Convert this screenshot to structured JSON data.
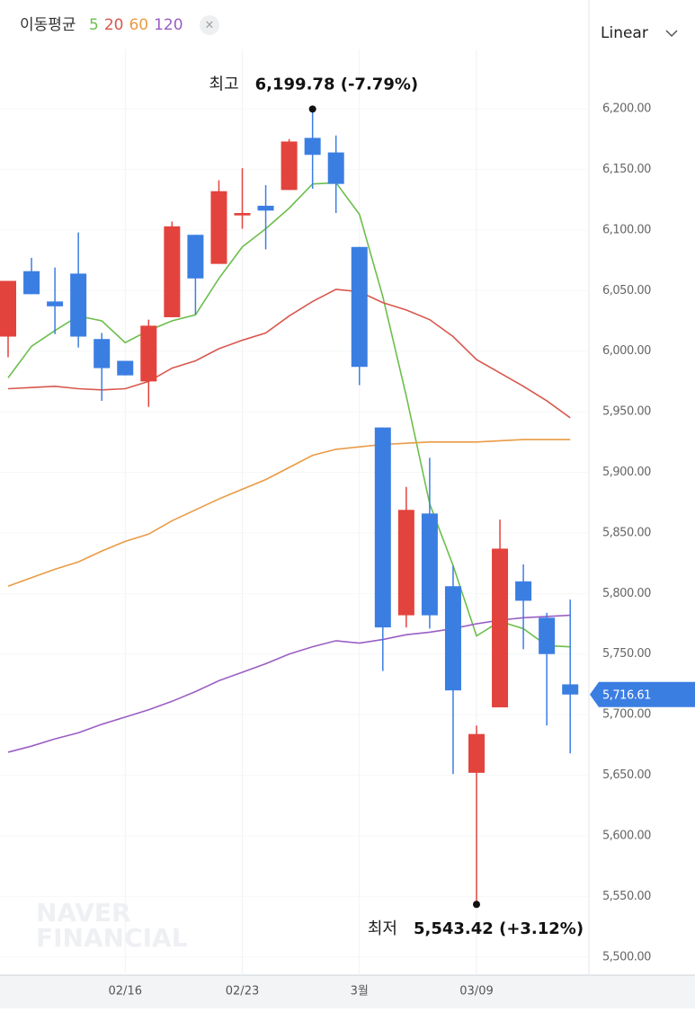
{
  "chart_data": {
    "type": "candlestick",
    "legend_title": "이동평균",
    "scale_label": "Linear",
    "categories": [
      null,
      null,
      null,
      null,
      null,
      "02/16",
      null,
      null,
      null,
      null,
      "02/23",
      null,
      null,
      null,
      null,
      "3월",
      null,
      null,
      null,
      null,
      "03/09",
      null,
      null,
      null,
      null
    ],
    "candles": {
      "up_color": "#e3433d",
      "down_color": "#3b7ee2",
      "open": [
        6012,
        6066,
        6041,
        6064,
        6010,
        5992,
        5975,
        6028,
        6096,
        6072,
        6112,
        6120,
        6133,
        6176,
        6164,
        6086,
        5937,
        5782,
        5866,
        5806,
        5652,
        5706,
        5810,
        5780,
        5725
      ],
      "high": [
        6058,
        6077,
        6069,
        6098,
        6015,
        5992,
        6026,
        6107,
        6096,
        6141,
        6151,
        6137,
        6175,
        6199.78,
        6178,
        6086,
        5937,
        5888,
        5912,
        5823,
        5691,
        5861,
        5824,
        5784,
        5795
      ],
      "low": [
        5995,
        6047,
        6014,
        6003,
        5959,
        5980,
        5954,
        6028,
        6030,
        6072,
        6101,
        6084,
        6133,
        6134,
        6114,
        5972,
        5736,
        5772,
        5771,
        5651,
        5543.42,
        5706,
        5754,
        5691,
        5668
      ],
      "close": [
        6058,
        6047,
        6037,
        6012,
        5986,
        5980,
        6021,
        6103,
        6060,
        6132,
        6114,
        6116,
        6173,
        6162,
        6138,
        5987,
        5772,
        5869,
        5782,
        5720,
        5684,
        5837,
        5794,
        5750,
        5716.61
      ]
    },
    "series": [
      {
        "name": "5",
        "color": "#6cbf4c",
        "values": [
          5978,
          6004,
          6017,
          6029,
          6025,
          6007,
          6017,
          6025,
          6030,
          6060,
          6086,
          6101,
          6118,
          6138,
          6139,
          6113,
          6045,
          5963,
          5874,
          5823,
          5765,
          5777,
          5771,
          5757,
          5756
        ]
      },
      {
        "name": "20",
        "color": "#d9574d",
        "values": [
          5969,
          5970,
          5971,
          5969,
          5968,
          5969,
          5975,
          5986,
          5992,
          6002,
          6009,
          6015,
          6029,
          6041,
          6051,
          6049,
          6040,
          6034,
          6026,
          6012,
          5993,
          5982,
          5971,
          5959,
          5945
        ]
      },
      {
        "name": "60",
        "color": "#e99b45",
        "values": [
          5806,
          5813,
          5820,
          5826,
          5835,
          5843,
          5849,
          5860,
          5869,
          5878,
          5886,
          5894,
          5904,
          5914,
          5919,
          5921,
          5923,
          5924,
          5925,
          5925,
          5925,
          5926,
          5927,
          5927,
          5927
        ]
      },
      {
        "name": "120",
        "color": "#9a5fc4",
        "values": [
          5669,
          5674,
          5680,
          5685,
          5692,
          5698,
          5704,
          5711,
          5719,
          5728,
          5735,
          5742,
          5750,
          5756,
          5761,
          5759,
          5762,
          5766,
          5768,
          5771,
          5775,
          5778,
          5780,
          5781,
          5782
        ]
      }
    ],
    "ylim": [
      5485,
      6249
    ],
    "yticks": [
      {
        "value": 5500,
        "label": "5,500.00"
      },
      {
        "value": 5550,
        "label": "5,550.00"
      },
      {
        "value": 5600,
        "label": "5,600.00"
      },
      {
        "value": 5650,
        "label": "5,650.00"
      },
      {
        "value": 5700,
        "label": "5,700.00"
      },
      {
        "value": 5750,
        "label": "5,750.00"
      },
      {
        "value": 5800,
        "label": "5,800.00"
      },
      {
        "value": 5850,
        "label": "5,850.00"
      },
      {
        "value": 5900,
        "label": "5,900.00"
      },
      {
        "value": 5950,
        "label": "5,950.00"
      },
      {
        "value": 6000,
        "label": "6,000.00"
      },
      {
        "value": 6050,
        "label": "6,050.00"
      },
      {
        "value": 6100,
        "label": "6,100.00"
      },
      {
        "value": 6150,
        "label": "6,150.00"
      },
      {
        "value": 6200,
        "label": "6,200.00"
      }
    ],
    "high_annotation": {
      "label": "최고",
      "value": 6199.78,
      "text": "6,199.78 (-7.79%)"
    },
    "low_annotation": {
      "label": "최저",
      "value": 5543.42,
      "text": "5,543.42 (+3.12%)"
    },
    "price_tag": {
      "value": 5716.61,
      "label": "5,716.61",
      "color": "#3b7ee2"
    },
    "watermark": [
      "NAVER",
      "FINANCIAL"
    ]
  }
}
